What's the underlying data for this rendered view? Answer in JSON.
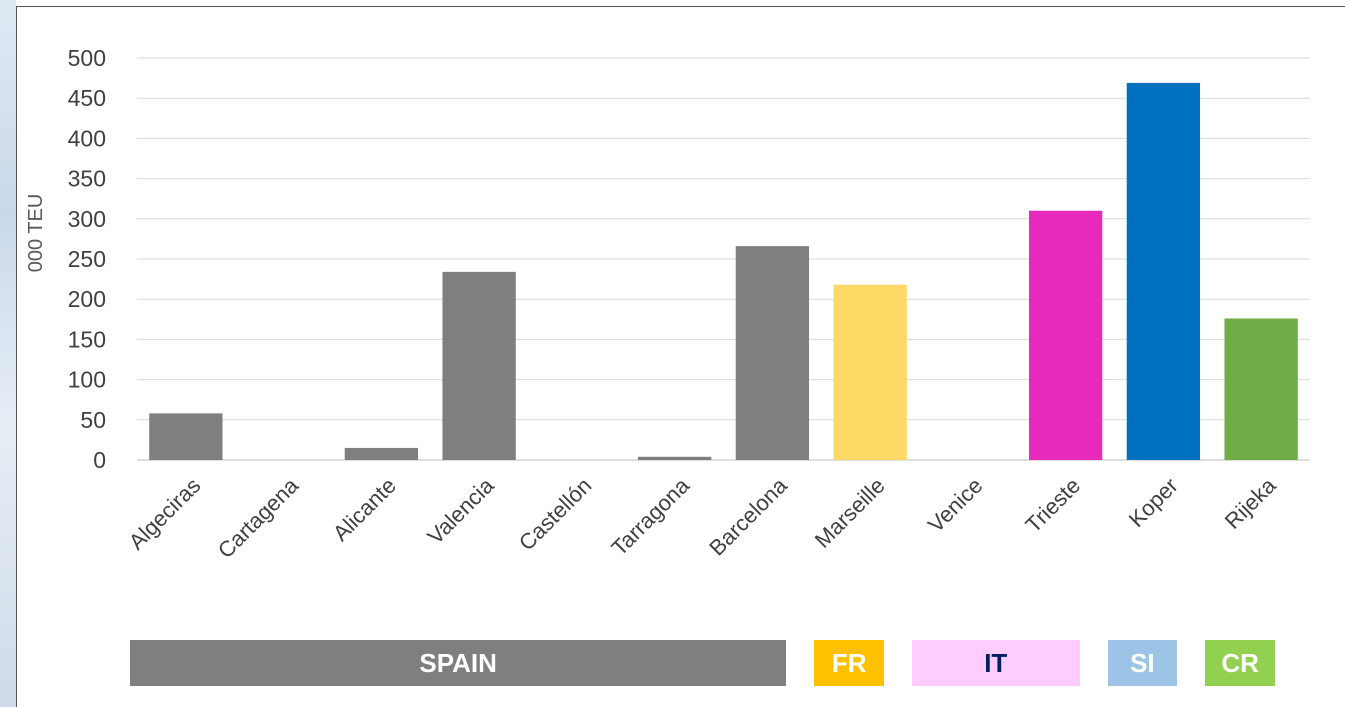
{
  "chart_data": {
    "type": "bar",
    "categories": [
      "Algeciras",
      "Cartagena",
      "Alicante",
      "Valencia",
      "Castellón",
      "Tarragona",
      "Barcelona",
      "Marseille",
      "Venice",
      "Trieste",
      "Koper",
      "Rijeka"
    ],
    "values": [
      58,
      0,
      15,
      234,
      0,
      4,
      266,
      218,
      0,
      310,
      469,
      176
    ],
    "bar_colors": [
      "#7f7f7f",
      "#7f7f7f",
      "#7f7f7f",
      "#7f7f7f",
      "#7f7f7f",
      "#7f7f7f",
      "#7f7f7f",
      "#ffd966",
      "#e62bbc",
      "#e62bbc",
      "#0070c0",
      "#70ad47"
    ],
    "ylabel": "000 TEU",
    "ylim": [
      0,
      500
    ],
    "yticks": [
      0,
      50,
      100,
      150,
      200,
      250,
      300,
      350,
      400,
      450,
      500
    ],
    "grid": true,
    "legend": "none"
  },
  "groups": [
    {
      "label": "SPAIN",
      "bg": "#7f7f7f",
      "fg": "#ffffff",
      "from": 0,
      "to": 6
    },
    {
      "label": "FR",
      "bg": "#ffc000",
      "fg": "#ffffff",
      "from": 7,
      "to": 7
    },
    {
      "label": "IT",
      "bg": "#ffccff",
      "fg": "#002060",
      "from": 8,
      "to": 9
    },
    {
      "label": "SI",
      "bg": "#9dc3e6",
      "fg": "#ffffff",
      "from": 10,
      "to": 10
    },
    {
      "label": "CR",
      "bg": "#92d050",
      "fg": "#ffffff",
      "from": 11,
      "to": 11
    }
  ]
}
